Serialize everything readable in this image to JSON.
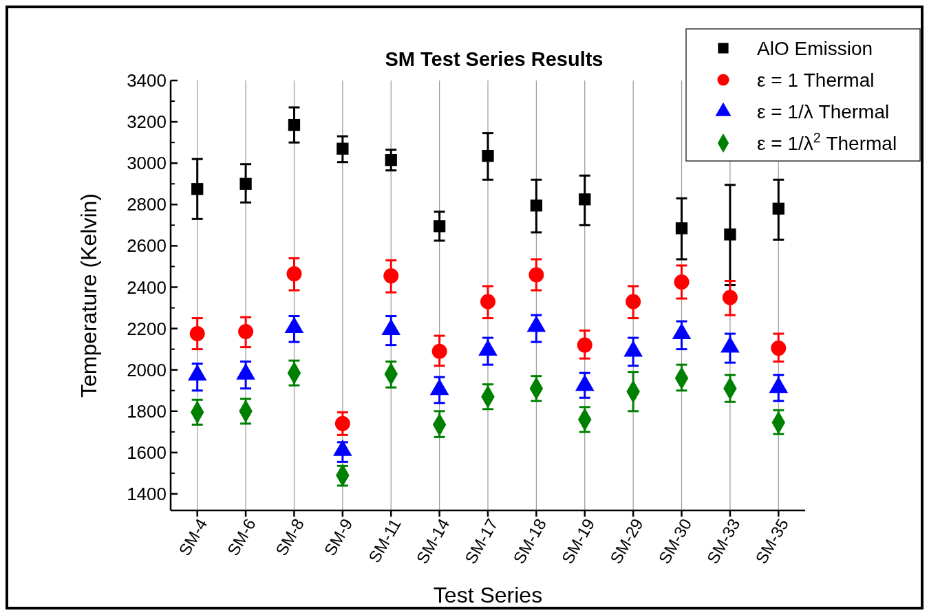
{
  "chart_data": {
    "type": "scatter",
    "title": "SM Test Series Results",
    "xlabel": "Test Series",
    "ylabel": "Temperature (Kelvin)",
    "categories": [
      "SM-4",
      "SM-6",
      "SM-8",
      "SM-9",
      "SM-11",
      "SM-14",
      "SM-17",
      "SM-18",
      "SM-19",
      "SM-29",
      "SM-30",
      "SM-33",
      "SM-35"
    ],
    "ylim": [
      1320,
      3400
    ],
    "yticks": [
      1400,
      1600,
      1800,
      2000,
      2200,
      2400,
      2600,
      2800,
      3000,
      3200,
      3400
    ],
    "grid": "x",
    "legend": "top right",
    "series": [
      {
        "name": "AlO Emission",
        "color": "#000000",
        "marker": "square",
        "values": [
          2875,
          2900,
          3185,
          3070,
          3015,
          2695,
          3035,
          2795,
          2825,
          null,
          2685,
          2655,
          2780
        ],
        "errors": [
          [
            2730,
            3020
          ],
          [
            2810,
            2995
          ],
          [
            3100,
            3270
          ],
          [
            3005,
            3130
          ],
          [
            2965,
            3065
          ],
          [
            2625,
            2765
          ],
          [
            2920,
            3145
          ],
          [
            2665,
            2920
          ],
          [
            2700,
            2940
          ],
          null,
          [
            2535,
            2830
          ],
          [
            2410,
            2895
          ],
          [
            2630,
            2920
          ]
        ]
      },
      {
        "name": "ε = 1 Thermal",
        "color": "#ff0000",
        "marker": "circle",
        "values": [
          2175,
          2185,
          2465,
          1740,
          2455,
          2090,
          2330,
          2460,
          2120,
          2330,
          2425,
          2350,
          2105
        ],
        "errors": [
          [
            2100,
            2250
          ],
          [
            2110,
            2255
          ],
          [
            2385,
            2540
          ],
          [
            1685,
            1795
          ],
          [
            2375,
            2530
          ],
          [
            2020,
            2165
          ],
          [
            2250,
            2405
          ],
          [
            2385,
            2535
          ],
          [
            2055,
            2190
          ],
          [
            2250,
            2405
          ],
          [
            2345,
            2505
          ],
          [
            2265,
            2430
          ],
          [
            2040,
            2175
          ]
        ]
      },
      {
        "name": "ε = 1/λ Thermal",
        "color": "#0000ff",
        "marker": "triangle",
        "values": [
          1975,
          1980,
          2205,
          1610,
          2195,
          1905,
          2095,
          2210,
          1925,
          2090,
          2175,
          2110,
          1915
        ],
        "errors": [
          [
            1900,
            2030
          ],
          [
            1910,
            2040
          ],
          [
            2135,
            2260
          ],
          [
            1555,
            1650
          ],
          [
            2120,
            2260
          ],
          [
            1840,
            1965
          ],
          [
            2025,
            2155
          ],
          [
            2135,
            2265
          ],
          [
            1865,
            1985
          ],
          [
            2020,
            2155
          ],
          [
            2100,
            2235
          ],
          [
            2035,
            2175
          ],
          [
            1850,
            1975
          ]
        ]
      },
      {
        "name": "ε = 1/λ$^{2}$ Thermal",
        "color": "#008000",
        "marker": "diamond",
        "values": [
          1795,
          1800,
          1985,
          1490,
          1980,
          1735,
          1870,
          1910,
          1760,
          1895,
          1960,
          1910,
          1745
        ],
        "errors": [
          [
            1735,
            1855
          ],
          [
            1740,
            1860
          ],
          [
            1925,
            2045
          ],
          [
            1440,
            1535
          ],
          [
            1915,
            2040
          ],
          [
            1675,
            1800
          ],
          [
            1810,
            1930
          ],
          [
            1850,
            1970
          ],
          [
            1700,
            1820
          ],
          [
            1800,
            1990
          ],
          [
            1900,
            2025
          ],
          [
            1845,
            1975
          ],
          [
            1690,
            1805
          ]
        ]
      }
    ]
  }
}
